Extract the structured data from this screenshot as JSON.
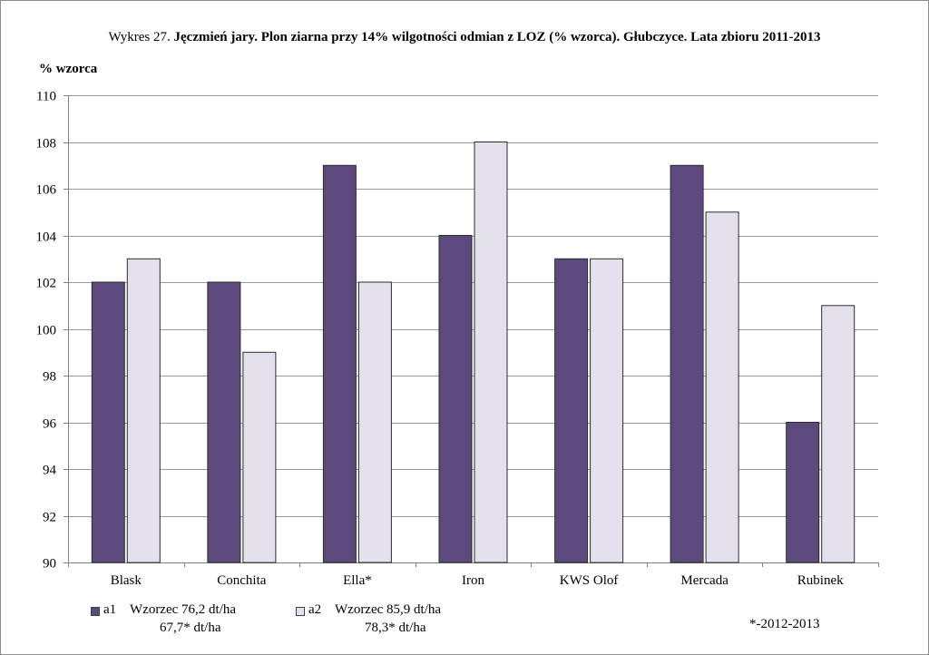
{
  "title": {
    "prefix": "Wykres 27.",
    "main": "Jęczmień jary. Plon ziarna przy 14% wilgotności odmian z LOZ (% wzorca). Głubczyce. Lata zbioru 2011-2013"
  },
  "colors": {
    "a1": "#5d4a7c",
    "a2": "#e4e0ec",
    "grid": "#9a9a9a",
    "axis": "#7f7f7f"
  },
  "chart_data": {
    "type": "bar",
    "ylabel": "% wzorca",
    "ylim": [
      90,
      110
    ],
    "ytick_step": 2,
    "grid": true,
    "categories": [
      "Blask",
      "Conchita",
      "Ella*",
      "Iron",
      "KWS Olof",
      "Mercada",
      "Rubinek"
    ],
    "series": [
      {
        "name": "a1",
        "values": [
          102,
          102,
          107,
          104,
          103,
          107,
          96
        ]
      },
      {
        "name": "a2",
        "values": [
          103,
          99,
          102,
          108,
          103,
          105,
          101
        ]
      }
    ],
    "legend": [
      {
        "series": "a1",
        "line1": "Wzorzec 76,2 dt/ha",
        "line2": "67,7* dt/ha"
      },
      {
        "series": "a2",
        "line1": "Wzorzec 85,9 dt/ha",
        "line2": "78,3* dt/ha"
      }
    ],
    "legend_position": "bottom-left",
    "footnote": "*-2012-2013"
  }
}
